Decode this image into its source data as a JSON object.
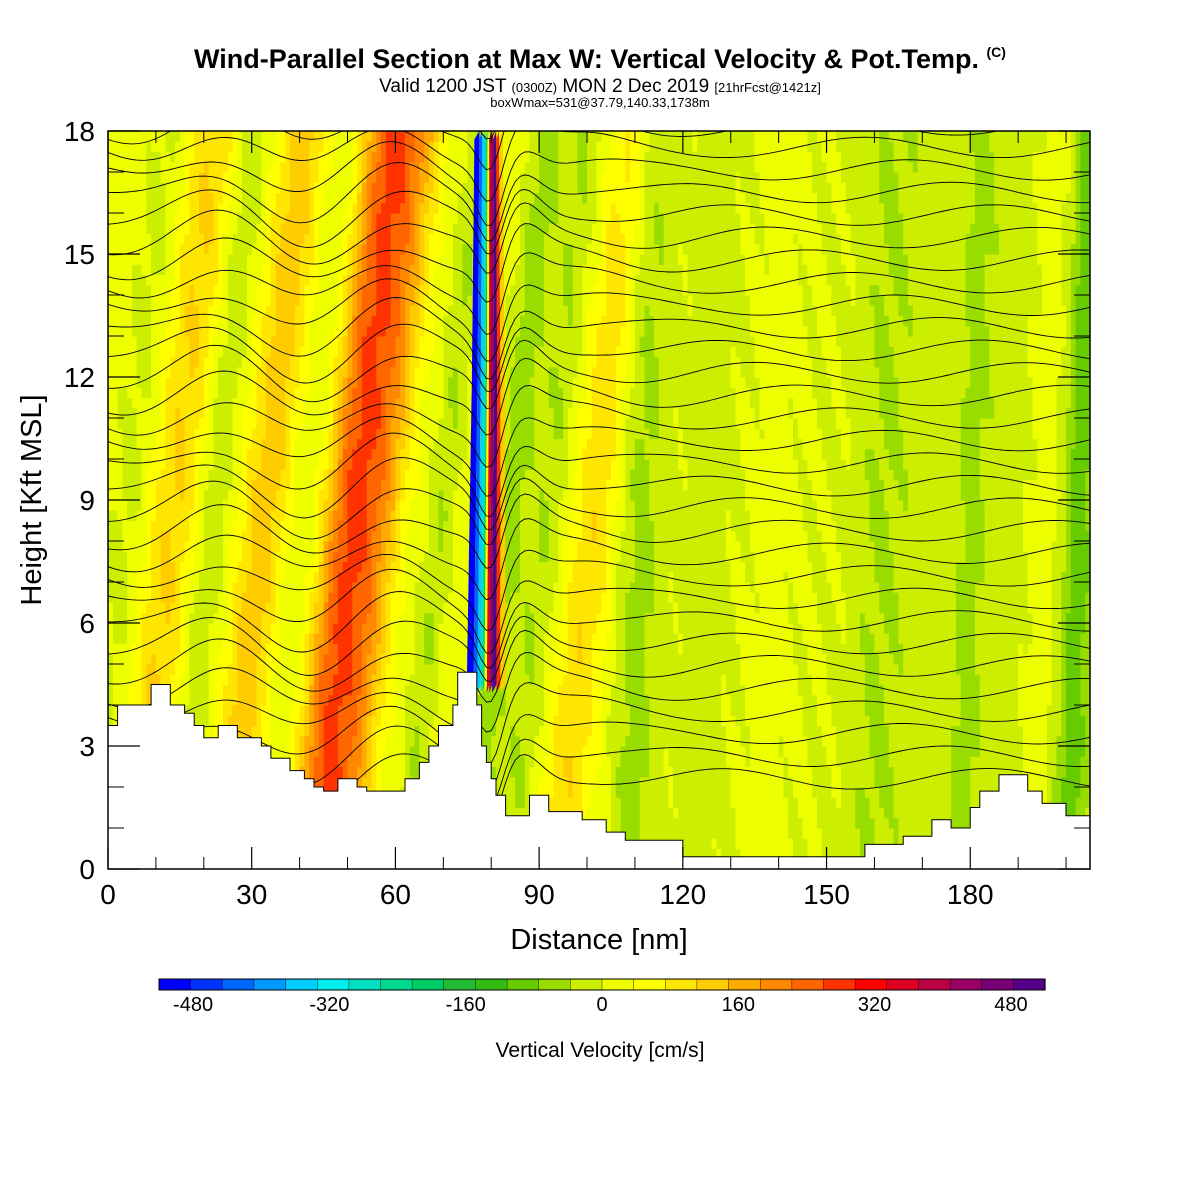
{
  "title": {
    "main": "Wind-Parallel Section at Max W: Vertical Velocity & Pot.Temp.",
    "copyright": "(C)",
    "valid_prefix": "Valid 1200 JST",
    "valid_utc": "(0300Z)",
    "valid_date": "MON 2 Dec 2019",
    "forecast": "[21hrFcst@1421z]",
    "box": "boxWmax=531@37.79,140.33,1738m"
  },
  "chart_data": {
    "type": "heatmap",
    "xlabel": "Distance [nm]",
    "ylabel": "Height [Kft MSL]",
    "xlim": [
      0,
      205
    ],
    "ylim": [
      0,
      18
    ],
    "x_ticks": [
      0,
      30,
      60,
      90,
      120,
      150,
      180
    ],
    "y_ticks": [
      0,
      3,
      6,
      9,
      12,
      15,
      18
    ],
    "colorbar": {
      "label": "Vertical Velocity [cm/s]",
      "ticks": [
        -480,
        -320,
        -160,
        0,
        160,
        320,
        480
      ],
      "range": [
        -520,
        520
      ],
      "colors": [
        "#0000ff",
        "#0033ff",
        "#0066ff",
        "#0099ff",
        "#00ccff",
        "#00eeee",
        "#00e0c0",
        "#00d890",
        "#00cc66",
        "#22bb33",
        "#33bb11",
        "#66cc00",
        "#99dd00",
        "#ccee00",
        "#eeff00",
        "#ffff00",
        "#ffe600",
        "#ffcc00",
        "#ffaa00",
        "#ff8800",
        "#ff6600",
        "#ff3300",
        "#ff0000",
        "#dd0022",
        "#bb0044",
        "#990066",
        "#770077",
        "#550088"
      ]
    },
    "terrain_kft": [
      [
        0,
        3.5
      ],
      [
        2,
        3.5
      ],
      [
        2,
        4.0
      ],
      [
        9,
        4.0
      ],
      [
        9,
        4.5
      ],
      [
        13,
        4.5
      ],
      [
        13,
        4.0
      ],
      [
        16,
        4.0
      ],
      [
        16,
        3.8
      ],
      [
        18,
        3.8
      ],
      [
        18,
        3.5
      ],
      [
        20,
        3.5
      ],
      [
        20,
        3.2
      ],
      [
        23,
        3.2
      ],
      [
        23,
        3.5
      ],
      [
        27,
        3.5
      ],
      [
        27,
        3.2
      ],
      [
        32,
        3.2
      ],
      [
        32,
        3.0
      ],
      [
        34,
        3.0
      ],
      [
        34,
        2.7
      ],
      [
        38,
        2.7
      ],
      [
        38,
        2.4
      ],
      [
        41,
        2.4
      ],
      [
        41,
        2.2
      ],
      [
        43,
        2.2
      ],
      [
        43,
        2.0
      ],
      [
        45,
        2.0
      ],
      [
        45,
        1.9
      ],
      [
        48,
        1.9
      ],
      [
        48,
        2.2
      ],
      [
        52,
        2.2
      ],
      [
        52,
        2.0
      ],
      [
        54,
        2.0
      ],
      [
        54,
        1.9
      ],
      [
        62,
        1.9
      ],
      [
        62,
        2.2
      ],
      [
        65,
        2.2
      ],
      [
        65,
        2.6
      ],
      [
        67,
        2.6
      ],
      [
        67,
        3.0
      ],
      [
        69,
        3.0
      ],
      [
        69,
        3.5
      ],
      [
        72,
        3.5
      ],
      [
        72,
        4.0
      ],
      [
        73,
        4.0
      ],
      [
        73,
        4.8
      ],
      [
        77,
        4.8
      ],
      [
        77,
        4.0
      ],
      [
        78,
        4.0
      ],
      [
        78,
        3.0
      ],
      [
        79,
        3.0
      ],
      [
        79,
        2.6
      ],
      [
        80,
        2.6
      ],
      [
        80,
        2.2
      ],
      [
        81,
        2.2
      ],
      [
        81,
        1.8
      ],
      [
        83,
        1.8
      ],
      [
        83,
        1.3
      ],
      [
        88,
        1.3
      ],
      [
        88,
        1.8
      ],
      [
        92,
        1.8
      ],
      [
        92,
        1.4
      ],
      [
        99,
        1.4
      ],
      [
        99,
        1.2
      ],
      [
        104,
        1.2
      ],
      [
        104,
        0.9
      ],
      [
        108,
        0.9
      ],
      [
        108,
        0.7
      ],
      [
        120,
        0.7
      ],
      [
        120,
        0.3
      ],
      [
        158,
        0.3
      ],
      [
        158,
        0.6
      ],
      [
        166,
        0.6
      ],
      [
        166,
        0.8
      ],
      [
        172,
        0.8
      ],
      [
        172,
        1.2
      ],
      [
        176,
        1.2
      ],
      [
        176,
        1.0
      ],
      [
        180,
        1.0
      ],
      [
        180,
        1.5
      ],
      [
        182,
        1.5
      ],
      [
        182,
        1.9
      ],
      [
        186,
        1.9
      ],
      [
        186,
        2.3
      ],
      [
        192,
        2.3
      ],
      [
        192,
        1.9
      ],
      [
        195,
        1.9
      ],
      [
        195,
        1.6
      ],
      [
        200,
        1.6
      ],
      [
        200,
        1.3
      ],
      [
        205,
        1.3
      ]
    ]
  }
}
